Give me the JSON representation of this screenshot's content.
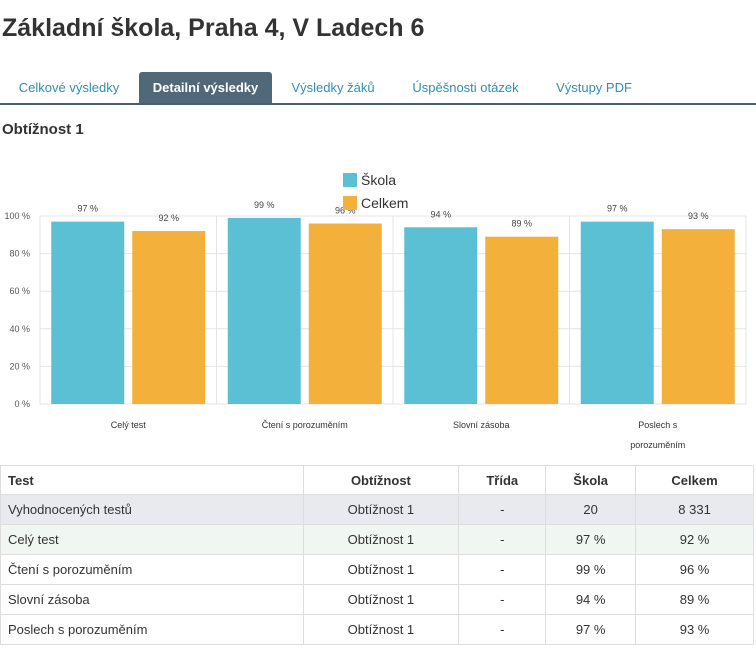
{
  "page": {
    "title": "Základní škola, Praha 4, V Ladech 6"
  },
  "tabs": [
    {
      "label": "Celkové výsledky"
    },
    {
      "label": "Detailní výsledky"
    },
    {
      "label": "Výsledky žáků"
    },
    {
      "label": "Úspěšnosti otázek"
    },
    {
      "label": "Výstupy PDF"
    }
  ],
  "section": {
    "title": "Obtížnost 1"
  },
  "colors": {
    "skola": "#5bc0d3",
    "celkem": "#f3b03a",
    "active_tab": "#506878",
    "link": "#2e8fb5"
  },
  "chart_data": {
    "type": "bar",
    "categories": [
      "Celý test",
      "Čtení s porozuměním",
      "Slovní zásoba",
      "Poslech s porozuměním"
    ],
    "category_labels": [
      [
        "Celý test"
      ],
      [
        "Čtení s porozuměním"
      ],
      [
        "Slovní zásoba"
      ],
      [
        "Poslech s",
        "porozuměním"
      ]
    ],
    "series": [
      {
        "name": "Škola",
        "values": [
          97,
          99,
          94,
          97
        ],
        "labels": [
          "97 %",
          "99 %",
          "94 %",
          "97 %"
        ]
      },
      {
        "name": "Celkem",
        "values": [
          92,
          96,
          89,
          93
        ],
        "labels": [
          "92 %",
          "96 %",
          "89 %",
          "93 %"
        ]
      }
    ],
    "ylim": [
      0,
      100
    ],
    "yticks": [
      0,
      20,
      40,
      60,
      80,
      100
    ],
    "ytick_labels": [
      "0 %",
      "20 %",
      "40 %",
      "60 %",
      "80 %",
      "100 %"
    ],
    "legend_position": "top-center",
    "grid": true
  },
  "table": {
    "headers": [
      "Test",
      "Obtížnost",
      "Třída",
      "Škola",
      "Celkem"
    ],
    "rows": [
      [
        "Vyhodnocených testů",
        "Obtížnost 1",
        "-",
        "20",
        "8 331"
      ],
      [
        "Celý test",
        "Obtížnost 1",
        "-",
        "97 %",
        "92 %"
      ],
      [
        "Čtení s porozuměním",
        "Obtížnost 1",
        "-",
        "99 %",
        "96 %"
      ],
      [
        "Slovní zásoba",
        "Obtížnost 1",
        "-",
        "94 %",
        "89 %"
      ],
      [
        "Poslech s porozuměním",
        "Obtížnost 1",
        "-",
        "97 %",
        "93 %"
      ]
    ]
  }
}
